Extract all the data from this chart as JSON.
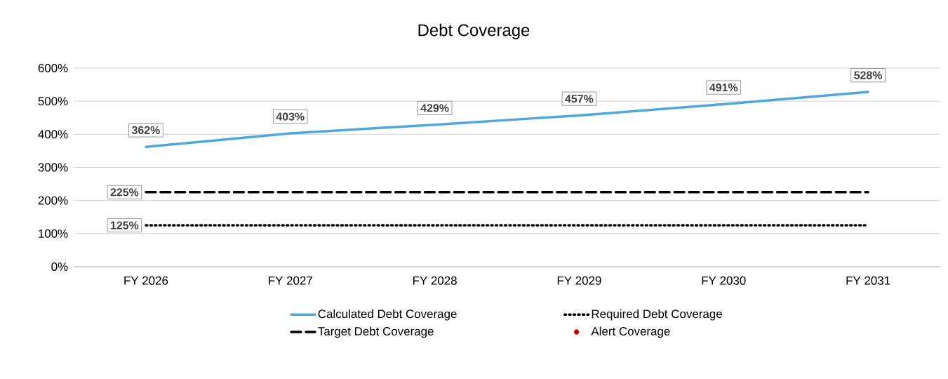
{
  "chart_data": {
    "type": "line",
    "title": "Debt Coverage",
    "categories": [
      "FY 2026",
      "FY 2027",
      "FY 2028",
      "FY 2029",
      "FY 2030",
      "FY 2031"
    ],
    "series": [
      {
        "name": "Calculated Debt Coverage",
        "color": "#4ea7de",
        "line_style": "solid",
        "marker": "none",
        "values": [
          362,
          403,
          429,
          457,
          491,
          528
        ],
        "value_labels": [
          "362%",
          "403%",
          "429%",
          "457%",
          "491%",
          "528%"
        ]
      },
      {
        "name": "Required Debt Coverage",
        "color": "#000000",
        "line_style": "dotted",
        "marker": "none",
        "values": [
          125,
          125,
          125,
          125,
          125,
          125
        ],
        "value_labels": [
          "125%",
          null,
          null,
          null,
          null,
          null
        ]
      },
      {
        "name": "Target Debt Coverage",
        "color": "#000000",
        "line_style": "dashed",
        "marker": "none",
        "values": [
          225,
          225,
          225,
          225,
          225,
          225
        ],
        "value_labels": [
          "225%",
          null,
          null,
          null,
          null,
          null
        ]
      },
      {
        "name": "Alert Coverage",
        "color": "#c00000",
        "marker": "circle",
        "values": [
          null,
          null,
          null,
          null,
          null,
          null
        ]
      }
    ],
    "ylim": [
      0,
      600
    ],
    "yticks": [
      {
        "value": 0,
        "label": "0%"
      },
      {
        "value": 100,
        "label": "100%"
      },
      {
        "value": 200,
        "label": "200%"
      },
      {
        "value": 300,
        "label": "300%"
      },
      {
        "value": 400,
        "label": "400%"
      },
      {
        "value": 500,
        "label": "500%"
      },
      {
        "value": 600,
        "label": "600%"
      }
    ],
    "grid": "y",
    "legend": "bottom"
  }
}
